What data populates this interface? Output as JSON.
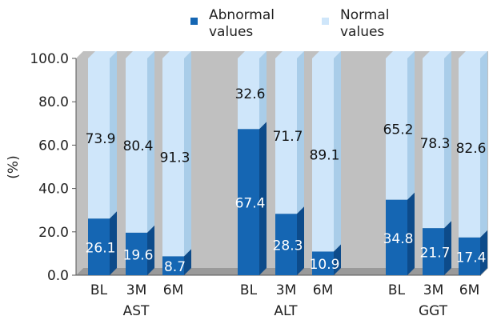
{
  "legend": {
    "abnormal_label": "Abnormal values",
    "normal_label": "Normal values"
  },
  "colors": {
    "abnormal": "#1566b3",
    "abnormal_side": "#0d4b8a",
    "normal": "#cfe6fa",
    "normal_side": "#a9cde9",
    "plot_bg": "#c0c0c0",
    "floor": "#9a9a9a"
  },
  "chart_data": {
    "type": "bar",
    "stacked": true,
    "ylabel": "(%)",
    "ylim": [
      0,
      100
    ],
    "yticks": [
      "0.0",
      "20.0",
      "40.0",
      "60.0",
      "80.0",
      "100.0"
    ],
    "groups": [
      "AST",
      "ALT",
      "GGT"
    ],
    "categories": [
      "BL",
      "3M",
      "6M"
    ],
    "series": [
      {
        "name": "Abnormal values",
        "values": [
          [
            26.1,
            19.6,
            8.7
          ],
          [
            67.4,
            28.3,
            10.9
          ],
          [
            34.8,
            21.7,
            17.4
          ]
        ]
      },
      {
        "name": "Normal values",
        "values": [
          [
            73.9,
            80.4,
            91.3
          ],
          [
            32.6,
            71.7,
            89.1
          ],
          [
            65.2,
            78.3,
            82.6
          ]
        ]
      }
    ],
    "abnormal_labels": [
      [
        "26.1",
        "19.6",
        "8.7"
      ],
      [
        "67.4",
        "28.3",
        "10.9"
      ],
      [
        "34.8",
        "21.7",
        "17.4"
      ]
    ],
    "normal_labels": [
      [
        "73.9",
        "80.4",
        "91.3"
      ],
      [
        "32.6",
        "71.7",
        "89.1"
      ],
      [
        "65.2",
        "78.3",
        "82.6"
      ]
    ]
  }
}
